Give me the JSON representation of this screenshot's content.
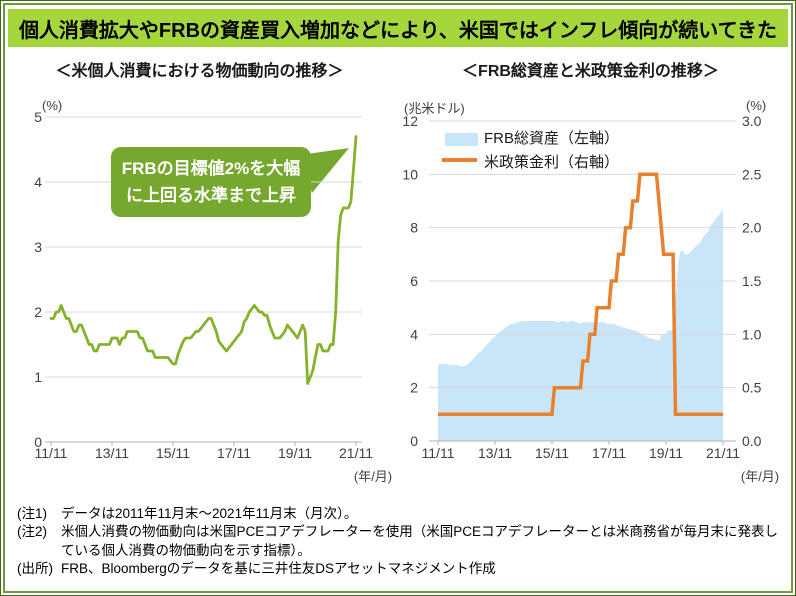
{
  "header": {
    "title": "個人消費拡大やFRBの資産買入増加などにより、米国ではインフレ傾向が続いてきた"
  },
  "colors": {
    "title_bar_bg": "#a5d63c",
    "frame_outer": "#44631f",
    "frame_inner": "#6e9a3d",
    "pce_line": "#84b22c",
    "callout_bg": "#76a82f",
    "assets_area": "#c9e6f8",
    "rate_line": "#e8802d",
    "grid_line": "#d9d9d9",
    "axis_line": "#bfbfbf",
    "tick_text": "#404040"
  },
  "callout": {
    "lines": [
      "FRBの目標値2%を大幅",
      "に上回る水準まで上昇"
    ]
  },
  "notes": [
    {
      "label": "(注1)",
      "text": "データは2011年11月末～2021年11月末（月次）。"
    },
    {
      "label": "(注2)",
      "text": "米個人消費の物価動向は米国PCEコアデフレーターを使用（米国PCEコアデフレーターとは米商務省が毎月末に発表している個人消費の物価動向を示す指標）。"
    },
    {
      "label": "(出所)",
      "text": "FRB、Bloombergのデータを基に三井住友DSアセットマネジメント作成"
    }
  ],
  "chart_data": [
    {
      "type": "line",
      "title": "＜米個人消費における物価動向の推移＞",
      "x": {
        "start": "2011/11",
        "end": "2021/11",
        "freq": "monthly",
        "n": 121
      },
      "xlabel": "(年/月)",
      "ylabel": "(%)",
      "ylim": [
        0,
        5
      ],
      "y_ticks": [
        0,
        1,
        2,
        3,
        4,
        5
      ],
      "x_tick_labels": [
        "11/11",
        "13/11",
        "15/11",
        "17/11",
        "19/11",
        "21/11"
      ],
      "x_tick_months": [
        0,
        24,
        48,
        72,
        96,
        120
      ],
      "grid": true,
      "annotation": "FRBの目標値2%を大幅に上回る水準まで上昇",
      "values": [
        1.9,
        1.9,
        2.0,
        2.0,
        2.1,
        2.0,
        1.9,
        1.9,
        1.8,
        1.7,
        1.7,
        1.8,
        1.8,
        1.7,
        1.6,
        1.5,
        1.5,
        1.4,
        1.4,
        1.5,
        1.5,
        1.5,
        1.5,
        1.5,
        1.6,
        1.6,
        1.6,
        1.5,
        1.6,
        1.6,
        1.7,
        1.7,
        1.7,
        1.7,
        1.7,
        1.6,
        1.6,
        1.5,
        1.4,
        1.4,
        1.4,
        1.3,
        1.3,
        1.3,
        1.3,
        1.3,
        1.3,
        1.25,
        1.2,
        1.2,
        1.35,
        1.45,
        1.55,
        1.6,
        1.6,
        1.6,
        1.65,
        1.7,
        1.7,
        1.75,
        1.8,
        1.85,
        1.9,
        1.9,
        1.8,
        1.7,
        1.55,
        1.5,
        1.45,
        1.4,
        1.45,
        1.5,
        1.55,
        1.6,
        1.65,
        1.7,
        1.85,
        1.9,
        2.0,
        2.05,
        2.1,
        2.05,
        2.0,
        2.0,
        1.95,
        1.95,
        1.8,
        1.7,
        1.6,
        1.6,
        1.6,
        1.65,
        1.7,
        1.8,
        1.75,
        1.7,
        1.65,
        1.6,
        1.7,
        1.8,
        1.7,
        0.9,
        1.0,
        1.1,
        1.3,
        1.5,
        1.5,
        1.4,
        1.4,
        1.4,
        1.5,
        1.5,
        2.0,
        3.1,
        3.5,
        3.6,
        3.6,
        3.6,
        3.7,
        4.2,
        4.7
      ]
    },
    {
      "type": "area+line",
      "title": "＜FRB総資産と米政策金利の推移＞",
      "x": {
        "start": "2011/11",
        "end": "2021/11",
        "freq": "monthly",
        "n": 121
      },
      "xlabel": "(年/月)",
      "y_left": {
        "unit": "(兆米ドル)",
        "lim": [
          0,
          12
        ],
        "ticks": [
          0,
          2,
          4,
          6,
          8,
          10,
          12
        ]
      },
      "y_right": {
        "unit": "(%)",
        "lim": [
          0,
          3
        ],
        "ticks": [
          "0.0",
          "0.5",
          "1.0",
          "1.5",
          "2.0",
          "2.5",
          "3.0"
        ]
      },
      "x_tick_labels": [
        "11/11",
        "13/11",
        "15/11",
        "17/11",
        "19/11",
        "21/11"
      ],
      "x_tick_months": [
        0,
        24,
        48,
        72,
        96,
        120
      ],
      "grid": true,
      "legend_position": "top-left-inside",
      "series": [
        {
          "name": "FRB総資産（左軸）",
          "type": "area",
          "axis": "left",
          "values": [
            2.85,
            2.9,
            2.9,
            2.9,
            2.9,
            2.85,
            2.85,
            2.85,
            2.85,
            2.8,
            2.8,
            2.8,
            2.85,
            2.9,
            3.0,
            3.1,
            3.2,
            3.3,
            3.35,
            3.45,
            3.55,
            3.65,
            3.75,
            3.85,
            3.9,
            4.0,
            4.1,
            4.15,
            4.25,
            4.3,
            4.35,
            4.4,
            4.4,
            4.45,
            4.45,
            4.5,
            4.5,
            4.5,
            4.5,
            4.5,
            4.5,
            4.5,
            4.5,
            4.5,
            4.5,
            4.5,
            4.5,
            4.5,
            4.5,
            4.5,
            4.45,
            4.45,
            4.5,
            4.5,
            4.45,
            4.45,
            4.5,
            4.5,
            4.45,
            4.45,
            4.4,
            4.45,
            4.45,
            4.45,
            4.45,
            4.45,
            4.45,
            4.45,
            4.45,
            4.45,
            4.45,
            4.4,
            4.4,
            4.4,
            4.4,
            4.35,
            4.3,
            4.3,
            4.25,
            4.25,
            4.2,
            4.2,
            4.15,
            4.15,
            4.1,
            4.05,
            4.0,
            3.95,
            3.9,
            3.85,
            3.85,
            3.8,
            3.8,
            3.75,
            3.95,
            4.0,
            4.05,
            4.15,
            4.15,
            4.2,
            5.25,
            6.6,
            7.1,
            7.15,
            7.0,
            7.0,
            7.05,
            7.15,
            7.25,
            7.35,
            7.4,
            7.55,
            7.7,
            7.8,
            7.9,
            8.1,
            8.2,
            8.35,
            8.45,
            8.55,
            8.66
          ]
        },
        {
          "name": "米政策金利（右軸）",
          "type": "line",
          "axis": "right",
          "values_rle": [
            [
              0.25,
              49
            ],
            [
              0.5,
              12
            ],
            [
              0.75,
              3
            ],
            [
              1.0,
              3
            ],
            [
              1.25,
              6
            ],
            [
              1.5,
              3
            ],
            [
              1.75,
              3
            ],
            [
              2.0,
              3
            ],
            [
              2.25,
              3
            ],
            [
              2.5,
              8
            ],
            [
              2.25,
              1
            ],
            [
              2.0,
              1
            ],
            [
              1.75,
              5
            ],
            [
              0.25,
              21
            ]
          ]
        }
      ]
    }
  ]
}
